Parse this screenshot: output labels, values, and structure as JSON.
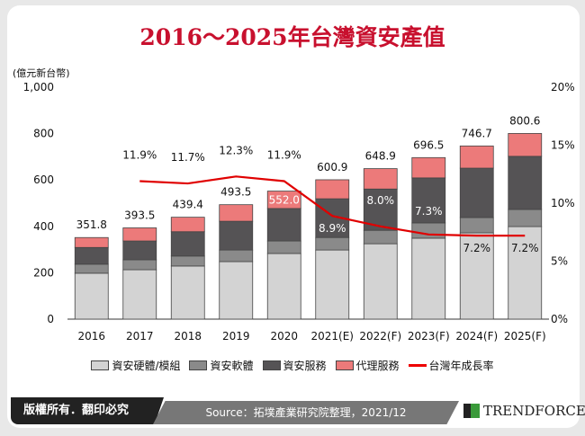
{
  "chart_data": {
    "type": "bar",
    "title": "2016～2025年台灣資安產值",
    "ylabel": "(億元新台幣)",
    "ylim": [
      0,
      1000
    ],
    "y2lim": [
      0,
      20
    ],
    "yticks": [
      "0",
      "200",
      "400",
      "600",
      "800",
      "1,000"
    ],
    "y2ticks": [
      "0%",
      "5%",
      "10%",
      "15%",
      "20%"
    ],
    "categories": [
      "2016",
      "2017",
      "2018",
      "2019",
      "2020",
      "2021(E)",
      "2022(F)",
      "2023(F)",
      "2024(F)",
      "2025(F)"
    ],
    "series": [
      {
        "name": "資安硬體/模組",
        "color": "#d3d3d3",
        "values": [
          198,
          213,
          229,
          248,
          283,
          298,
          325,
          349,
          372,
          399
        ]
      },
      {
        "name": "資安軟體",
        "color": "#8a8a8a",
        "values": [
          39,
          43,
          43,
          50,
          54,
          54,
          58,
          66,
          66,
          74
        ]
      },
      {
        "name": "資安服務",
        "color": "#555355",
        "values": [
          72,
          81,
          105,
          124,
          140,
          167,
          178,
          194,
          213,
          229
        ]
      },
      {
        "name": "代理服務",
        "color": "#ec7a7a",
        "values": [
          42.8,
          56.5,
          62.4,
          71.5,
          75,
          81.9,
          87.9,
          87.5,
          95.7,
          98.6
        ]
      }
    ],
    "totals": [
      "351.8",
      "393.5",
      "439.4",
      "493.5",
      "552.0",
      "600.9",
      "648.9",
      "696.5",
      "746.7",
      "800.6"
    ],
    "growth": {
      "name": "台灣年成長率",
      "color": "#e00000",
      "values": [
        null,
        11.9,
        11.7,
        12.3,
        11.9,
        8.9,
        8.0,
        7.3,
        7.2,
        7.2
      ],
      "labels": [
        "",
        "11.9%",
        "11.7%",
        "12.3%",
        "11.9%",
        "8.9%",
        "8.0%",
        "7.3%",
        "7.2%",
        "7.2%"
      ]
    },
    "legend": "bottom"
  },
  "footer": {
    "copyright": "版權所有．翻印必究",
    "source": "Source：拓墣產業研究院整理，2021/12",
    "logo": "TRENDFORCE"
  }
}
